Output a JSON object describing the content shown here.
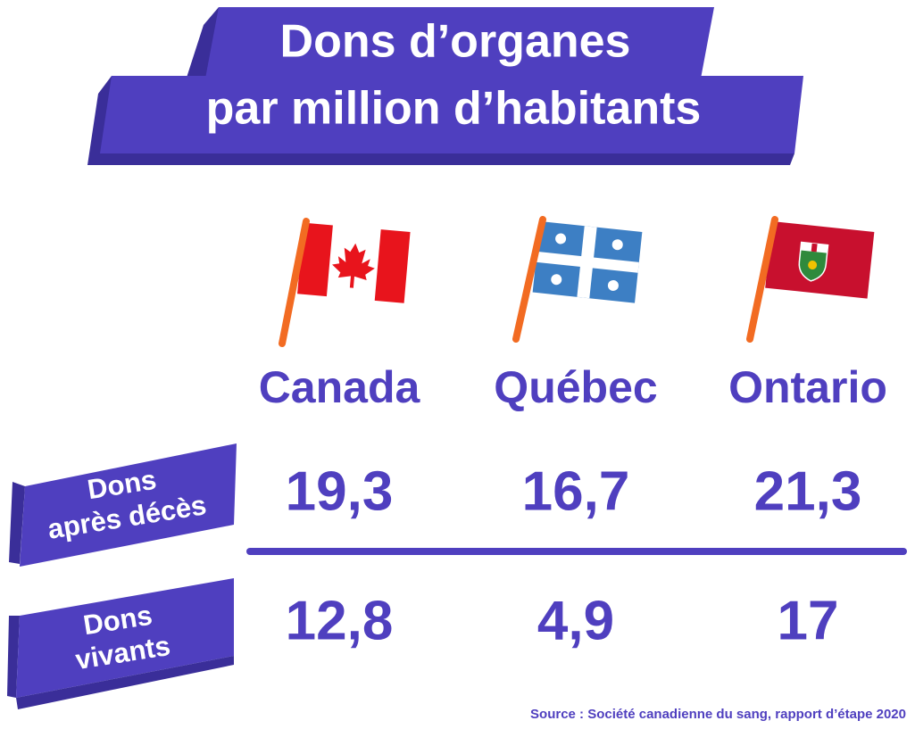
{
  "title": [
    "Dons d’organes",
    "par million d’habitants"
  ],
  "table": {
    "columns": [
      "Canada",
      "Québec",
      "Ontario"
    ],
    "rows": [
      {
        "label": [
          "Dons",
          "après décès"
        ],
        "values": [
          "19,3",
          "16,7",
          "21,3"
        ]
      },
      {
        "label": [
          "Dons",
          "vivants"
        ],
        "values": [
          "12,8",
          "4,9",
          "17"
        ]
      }
    ]
  },
  "source": "Source  : Société canadienne du sang, rapport d’étape 2020"
}
